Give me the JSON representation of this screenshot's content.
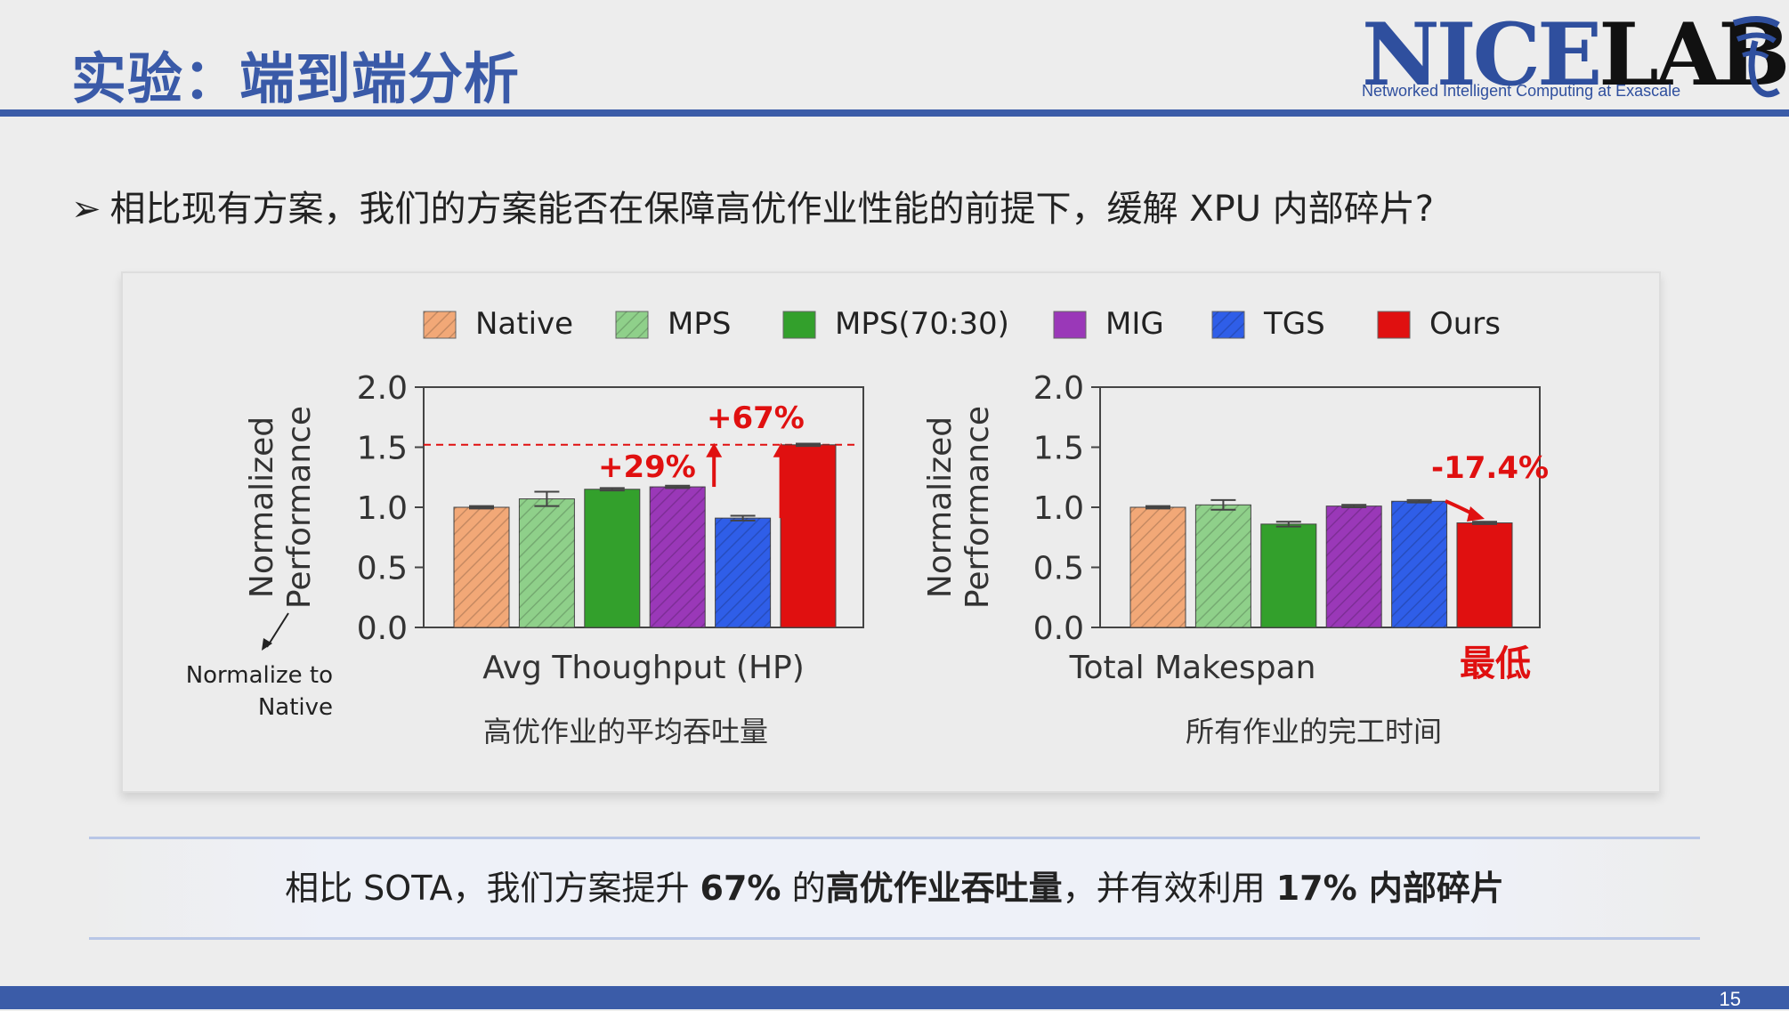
{
  "slide": {
    "title": "实验：端到端分析",
    "question_bullet": "➢",
    "question": "相比现有方案，我们的方案能否在保障高优作业性能的前提下，缓解 XPU 内部碎片?",
    "conclusion": {
      "p1": "相比 SOTA，我们方案提升 ",
      "b1": "67%",
      "p2": " 的",
      "b2": "高优作业吞吐量",
      "p3": "，并有效利用 ",
      "b3": "17% 内部碎片"
    },
    "page_number": "15"
  },
  "logo": {
    "nice": "NICE",
    "lab": "LAB",
    "subtitle": "Networked Intelligent Computing at Exascale"
  },
  "chart_data": {
    "legend": [
      {
        "name": "Native",
        "color": "#f2a877"
      },
      {
        "name": "MPS",
        "color": "#8fd08a"
      },
      {
        "name": "MPS(70:30)",
        "color": "#33a02c"
      },
      {
        "name": "MIG",
        "color": "#9a38b8"
      },
      {
        "name": "TGS",
        "color": "#2f5ee8"
      },
      {
        "name": "Ours",
        "color": "#e01010"
      }
    ],
    "note": "Normalize to\nNative",
    "charts": [
      {
        "type": "bar",
        "ylabel": "Normalized\nPerformance",
        "xlabel": "Avg Thoughput (HP)",
        "caption": "高优作业的平均吞吐量",
        "ylim": [
          0,
          2.0
        ],
        "yticks": [
          "0.0",
          "0.5",
          "1.0",
          "1.5",
          "2.0"
        ],
        "values": [
          1.0,
          1.07,
          1.15,
          1.17,
          0.91,
          1.52
        ],
        "errors": [
          0.01,
          0.06,
          0.01,
          0.01,
          0.02,
          0.01
        ],
        "annotations": [
          "+29%",
          "+67%"
        ],
        "reference_line": 1.52
      },
      {
        "type": "bar",
        "ylabel": "Normalized\nPerformance",
        "xlabel": "Total Makespan",
        "caption": "所有作业的完工时间",
        "ylim": [
          0,
          2.0
        ],
        "yticks": [
          "0.0",
          "0.5",
          "1.0",
          "1.5",
          "2.0"
        ],
        "values": [
          1.0,
          1.02,
          0.86,
          1.01,
          1.05,
          0.87
        ],
        "errors": [
          0.01,
          0.04,
          0.02,
          0.01,
          0.01,
          0.01
        ],
        "annotations": [
          "-17.4%"
        ],
        "highlight": "最低"
      }
    ]
  }
}
